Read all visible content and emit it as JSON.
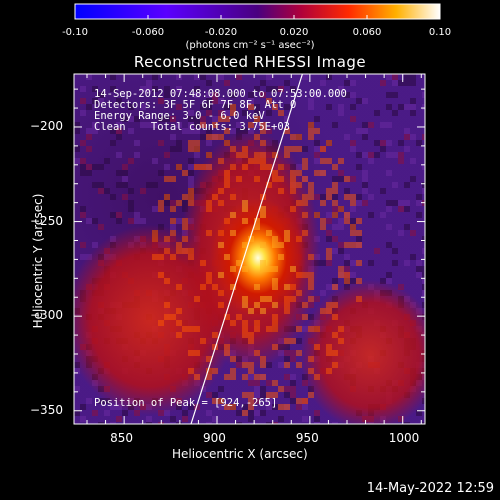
{
  "colorbar": {
    "ticks": [
      "-0.10",
      "-0.060",
      "-0.020",
      "0.020",
      "0.060",
      "0.10"
    ],
    "unit_label": "(photons cm⁻² s⁻¹ asec⁻²)",
    "range": [
      -0.1,
      0.1
    ]
  },
  "chart_data": {
    "type": "heatmap",
    "title": "Reconstructed RHESSI Image",
    "xlabel": "Heliocentric X (arcsec)",
    "ylabel": "Heliocentric Y (arcsec)",
    "xlim": [
      823,
      1012
    ],
    "ylim": [
      -357,
      -172
    ],
    "x_ticks": [
      850,
      900,
      950,
      1000
    ],
    "y_ticks": [
      -200,
      -250,
      -300,
      -350
    ],
    "peak": {
      "x": 924,
      "y": -265
    },
    "annotations": {
      "time": "14-Sep-2012 07:48:08.000 to 07:53:00.000",
      "detectors": "Detectors: 3F 5F 6F 7F 8F, Att 0",
      "energy": "Energy Range: 3.0 - 6.0 keV",
      "method": "Clean    Total counts: 3.75E+03",
      "peak_text": "Position of Peak = [924,-265]"
    },
    "limb_line": {
      "x": [
        886,
        946
      ],
      "y": [
        -357,
        -172
      ]
    }
  },
  "footer": {
    "timestamp": "14-May-2022 12:59"
  }
}
